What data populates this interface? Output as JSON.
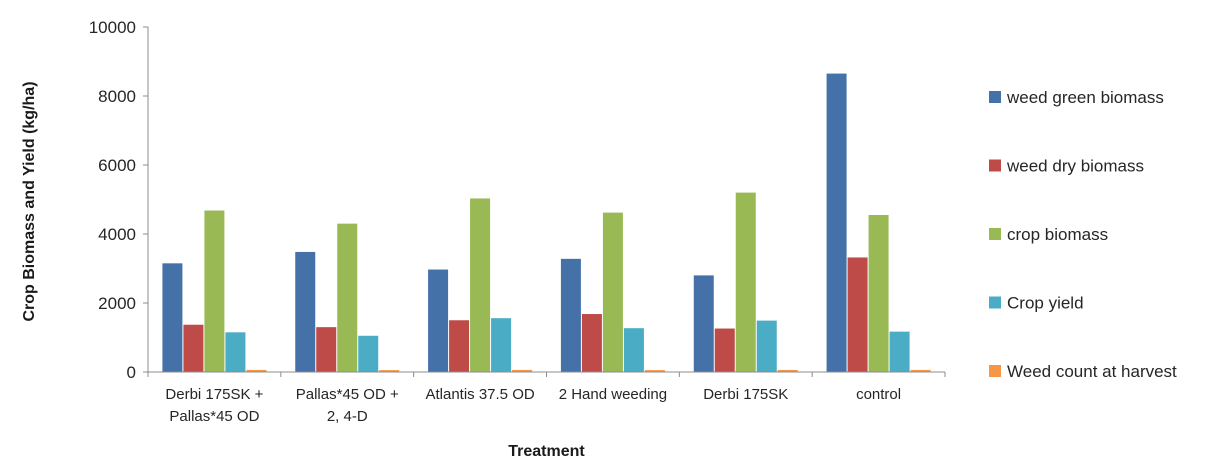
{
  "chart_data": {
    "type": "bar",
    "xlabel": "Treatment",
    "ylabel": "Crop Biomass and Yield (kg/ha)",
    "ylim": [
      0,
      10000
    ],
    "yticks": [
      "0",
      "2000",
      "4000",
      "6000",
      "8000",
      "10000"
    ],
    "categories": [
      [
        "Derbi 175SK +",
        "Pallas*45 OD"
      ],
      [
        "Pallas*45 OD +",
        "2, 4-D"
      ],
      [
        "Atlantis 37.5 OD"
      ],
      [
        "2 Hand weeding"
      ],
      [
        "Derbi 175SK"
      ],
      [
        "control"
      ]
    ],
    "series": [
      {
        "name": "weed green biomass",
        "color": "#4472A8",
        "values": [
          3150,
          3480,
          2970,
          3280,
          2800,
          8650
        ]
      },
      {
        "name": "weed dry biomass",
        "color": "#BE4B48",
        "values": [
          1370,
          1300,
          1500,
          1680,
          1260,
          3320
        ]
      },
      {
        "name": "crop biomass",
        "color": "#98B954",
        "values": [
          4680,
          4300,
          5030,
          4620,
          5200,
          4550
        ]
      },
      {
        "name": " Crop yield",
        "color": "#4BACC6",
        "values": [
          1150,
          1050,
          1560,
          1270,
          1490,
          1170
        ]
      },
      {
        "name": "Weed count at harvest",
        "color": "#F79646",
        "values": [
          60,
          55,
          60,
          55,
          60,
          60
        ]
      }
    ],
    "grid": false,
    "legend_position": "right"
  }
}
